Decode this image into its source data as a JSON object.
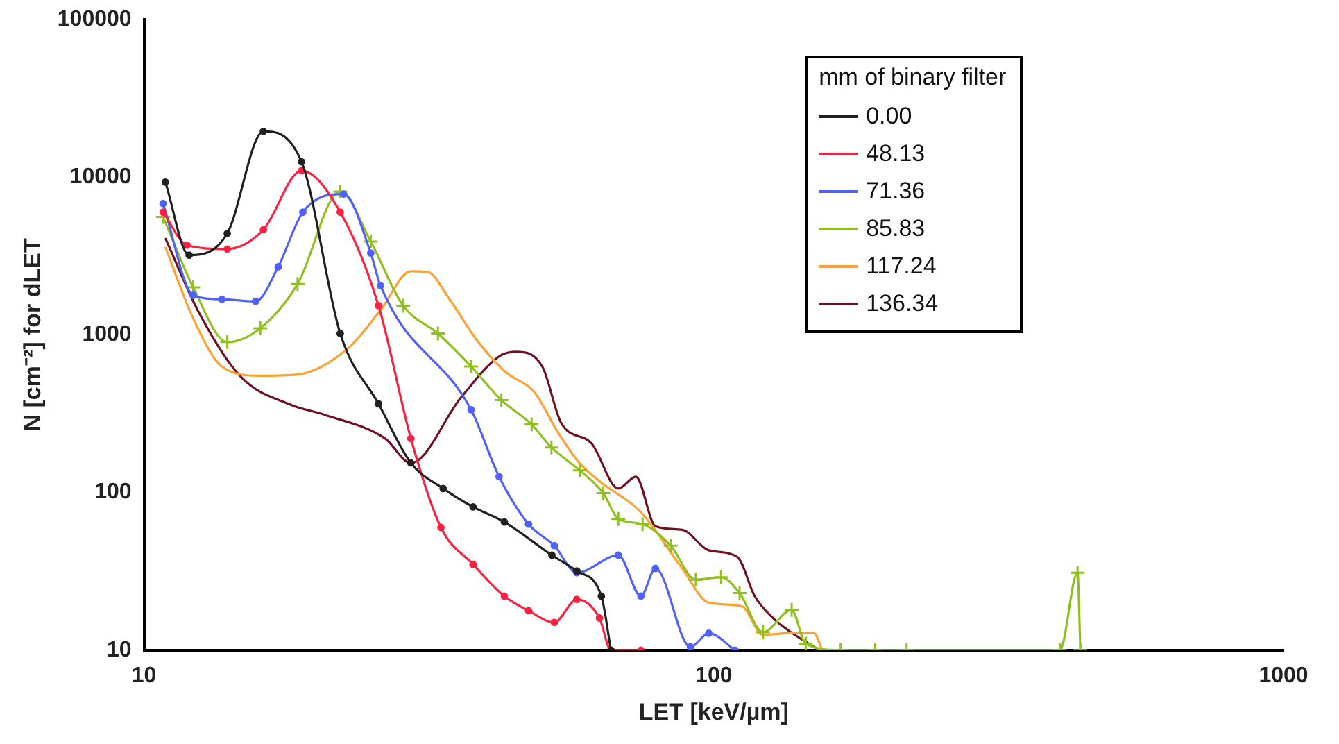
{
  "chart_data": {
    "type": "line",
    "xlabel": "LET [keV/µm]",
    "ylabel": "N [cm⁻²] for dLET",
    "legend_title": "mm of binary filter",
    "legend": "top right",
    "log": "xy",
    "grid": false,
    "xlim": [
      10,
      1000
    ],
    "xticks": [
      10,
      100,
      1000
    ],
    "ylim": [
      10,
      100000
    ],
    "yticks": [
      10,
      100,
      1000,
      10000,
      100000
    ],
    "series": [
      {
        "name": "0.00",
        "color": "#202020",
        "marker": "circle",
        "x": [
          10.9,
          12.0,
          14.0,
          16.2,
          18.9,
          22.1,
          25.8,
          29.4,
          33.5,
          37.8,
          42.9,
          52,
          57.5,
          63.5,
          66
        ],
        "values": [
          9300,
          3200,
          4400,
          19500,
          12500,
          1020,
          365,
          154,
          106,
          81,
          65,
          40,
          31.8,
          22,
          10
        ]
      },
      {
        "name": "48.13",
        "color": "#ff2040",
        "marker": "circle",
        "x": [
          10.8,
          11.9,
          14.0,
          16.2,
          18.9,
          22.1,
          25.8,
          29.4,
          33.2,
          37.8,
          42.9,
          47.3,
          52.5,
          57.5,
          63,
          66,
          74.5
        ],
        "values": [
          6000,
          3700,
          3500,
          4640,
          11000,
          6000,
          1530,
          220,
          60,
          35,
          22,
          17.8,
          15,
          21,
          16,
          10,
          10
        ]
      },
      {
        "name": "71.36",
        "color": "#5060ff",
        "marker": "circle",
        "x": [
          10.8,
          12.2,
          13.7,
          15.7,
          17.2,
          19,
          22.4,
          25,
          26,
          37.5,
          42,
          47.3,
          52.5,
          57.5,
          68,
          74.5,
          79,
          91,
          98,
          109
        ],
        "values": [
          6800,
          1780,
          1680,
          1630,
          2700,
          6000,
          7800,
          3300,
          2050,
          335,
          126,
          63,
          46,
          31,
          40,
          22,
          33,
          10.5,
          12.8,
          10
        ]
      },
      {
        "name": "85.83",
        "color": "#90c020",
        "marker": "cross",
        "x": [
          10.8,
          12.2,
          14,
          16,
          18.6,
          22.1,
          25,
          28.5,
          32.8,
          37.5,
          42.4,
          47.9,
          51.9,
          58.2,
          64,
          68,
          75,
          84,
          93,
          103,
          111,
          122,
          137,
          145,
          167,
          192,
          218,
          405,
          435,
          440
        ],
        "values": [
          5600,
          2000,
          900,
          1100,
          2100,
          8100,
          3900,
          1530,
          1020,
          630,
          385,
          270,
          193,
          138,
          99,
          68,
          63,
          46,
          28,
          29,
          23,
          13,
          18,
          11,
          10,
          10,
          10,
          10,
          31,
          10
        ]
      },
      {
        "name": "117.24",
        "color": "#ffa030",
        "marker": "none",
        "x": [
          10.9,
          12.2,
          13.7,
          16,
          18.6,
          22.8,
          26,
          29.4,
          31.5,
          34.3,
          38.3,
          43,
          48.5,
          53.3,
          58,
          63,
          74.5,
          88,
          98,
          112,
          122,
          135,
          150,
          155
        ],
        "values": [
          3600,
          1270,
          630,
          550,
          560,
          820,
          1430,
          2530,
          2500,
          1700,
          935,
          585,
          430,
          240,
          155,
          118,
          75,
          33,
          20,
          19,
          12.5,
          12.8,
          12.8,
          10
        ]
      },
      {
        "name": "136.34",
        "color": "#701020",
        "marker": "none",
        "x": [
          10.9,
          12.5,
          14.8,
          18.1,
          20.8,
          26.5,
          29.4,
          36,
          42,
          45,
          50,
          54,
          61,
          68,
          73,
          79,
          88,
          98,
          110,
          118,
          127,
          135,
          153
        ],
        "values": [
          4100,
          1370,
          540,
          360,
          310,
          220,
          154,
          400,
          730,
          780,
          630,
          275,
          205,
          106,
          126,
          61,
          58,
          43,
          39,
          22,
          16,
          13.4,
          10
        ]
      }
    ]
  }
}
